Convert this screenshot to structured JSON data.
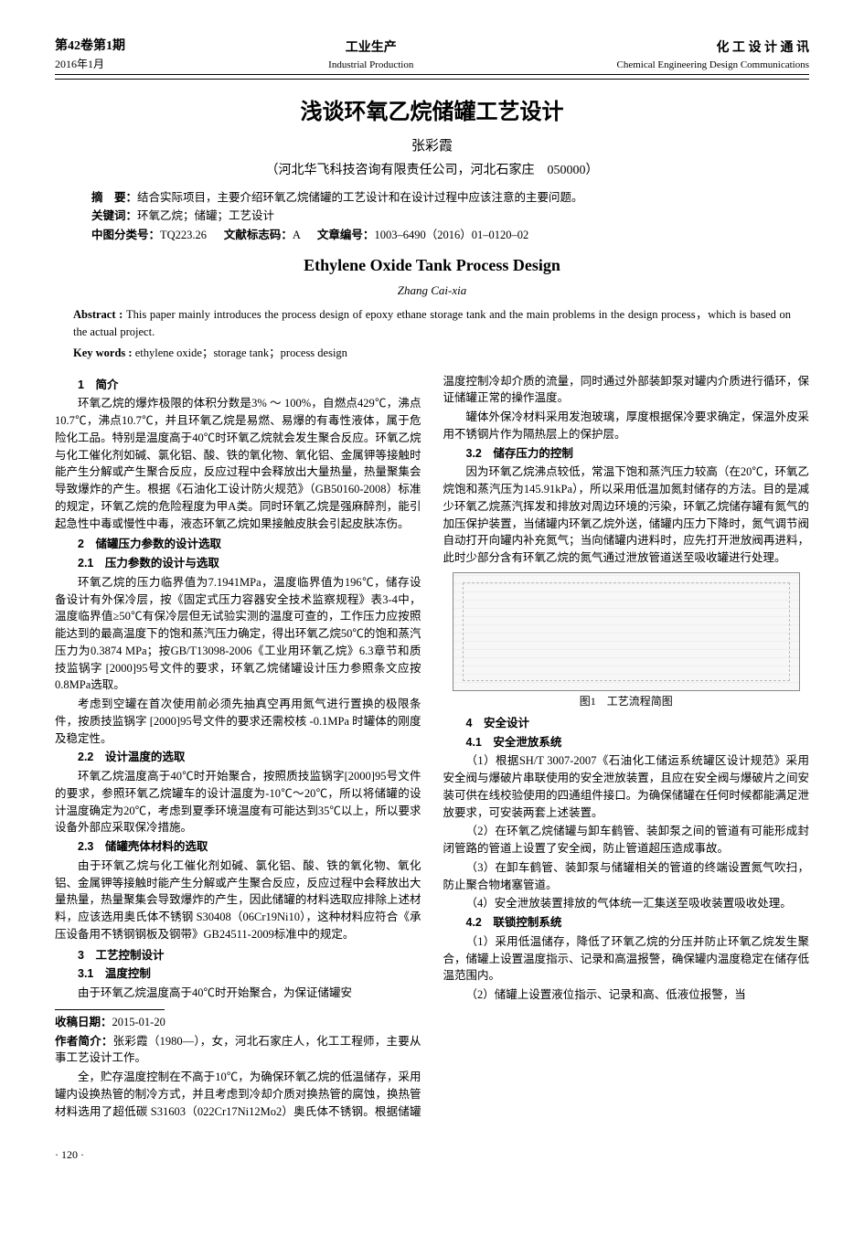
{
  "header": {
    "left_top": "第42卷第1期",
    "left_bottom": "2016年1月",
    "center_zh": "工业生产",
    "center_en": "Industrial Production",
    "right_zh": "化 工 设 计 通 讯",
    "right_en": "Chemical Engineering Design Communications"
  },
  "title_zh": "浅谈环氧乙烷储罐工艺设计",
  "author_zh": "张彩霞",
  "affil_zh": "（河北华飞科技咨询有限责任公司，河北石家庄　050000）",
  "abstract_zh_label": "摘　要：",
  "abstract_zh": "结合实际项目，主要介绍环氧乙烷储罐的工艺设计和在设计过程中应该注意的主要问题。",
  "keywords_zh_label": "关键词：",
  "keywords_zh": "环氧乙烷；储罐；工艺设计",
  "class_label": "中图分类号：",
  "class_no": "TQ223.26",
  "doc_label": "文献标志码：",
  "doc_code": "A",
  "art_label": "文章编号：",
  "art_no": "1003–6490（2016）01–0120–02",
  "title_en": "Ethylene Oxide Tank Process Design",
  "author_en": "Zhang Cai-xia",
  "abstract_en_label": "Abstract : ",
  "abstract_en": "This paper mainly introduces the process design of epoxy ethane storage tank and the main problems in the design process，which is based on the actual project.",
  "keywords_en_label": "Key words : ",
  "keywords_en": "ethylene oxide；storage tank；process design",
  "sections": {
    "s1": "1　简介",
    "s1p1": "环氧乙烷的爆炸极限的体积分数是3% ～ 100%，自燃点429℃，沸点10.7℃，沸点10.7℃，并且环氧乙烷是易燃、易爆的有毒性液体，属于危险化工品。特别是温度高于40℃时环氧乙烷就会发生聚合反应。环氧乙烷与化工催化剂如碱、氯化铝、酸、铁的氧化物、氧化铝、金属钾等接触时能产生分解或产生聚合反应，反应过程中会释放出大量热量，热量聚集会导致爆炸的产生。根据《石油化工设计防火规范》（GB50160-2008）标准的规定，环氧乙烷的危险程度为甲A类。同时环氧乙烷是强麻醉剂，能引起急性中毒或慢性中毒，液态环氧乙烷如果接触皮肤会引起皮肤冻伤。",
    "s2": "2　储罐压力参数的设计选取",
    "s21": "2.1　压力参数的设计与选取",
    "s21p1": "环氧乙烷的压力临界值为7.1941MPa，温度临界值为196℃，储存设备设计有外保冷层，按《固定式压力容器安全技术监察规程》表3-4中，温度临界值≥50℃有保冷层但无试验实测的温度可查的，工作压力应按照能达到的最高温度下的饱和蒸汽压力确定，得出环氧乙烷50℃的饱和蒸汽压力为0.3874 MPa；按GB/T13098-2006《工业用环氧乙烷》6.3章节和质技监锅字 [2000]95号文件的要求，环氧乙烷储罐设计压力参照条文应按0.8MPa选取。",
    "s21p2": "考虑到空罐在首次使用前必须先抽真空再用氮气进行置换的极限条件，按质技监锅字 [2000]95号文件的要求还需校核 -0.1MPa 时罐体的刚度及稳定性。",
    "s22": "2.2　设计温度的选取",
    "s22p1": "环氧乙烷温度高于40℃时开始聚合，按照质技监锅字[2000]95号文件的要求，参照环氧乙烷罐车的设计温度为-10℃～20℃，所以将储罐的设计温度确定为20℃，考虑到夏季环境温度有可能达到35℃以上，所以要求设备外部应采取保冷措施。",
    "s23": "2.3　储罐壳体材料的选取",
    "s23p1": "由于环氧乙烷与化工催化剂如碱、氯化铝、酸、铁的氧化物、氧化铝、金属钾等接触时能产生分解或产生聚合反应，反应过程中会释放出大量热量，热量聚集会导致爆炸的产生，因此储罐的材料选取应排除上述材料，应该选用奥氏体不锈钢 S30408（06Cr19Ni10），这种材料应符合《承压设备用不锈钢钢板及钢带》GB24511-2009标准中的规定。",
    "s3": "3　工艺控制设计",
    "s31": "3.1　温度控制",
    "s31p1": "由于环氧乙烷温度高于40℃时开始聚合，为保证储罐安",
    "s31p2": "全，贮存温度控制在不高于10℃，为确保环氧乙烷的低温储存，采用罐内设换热管的制冷方式，并且考虑到冷却介质对换热管的腐蚀，换热管材料选用了超低碳 S31603（022Cr17Ni12Mo2）奥氏体不锈钢。根据储罐温度控制冷却介质的流量，同时通过外部装卸泵对罐内介质进行循环，保证储罐正常的操作温度。",
    "s31p3": "罐体外保冷材料采用发泡玻璃，厚度根据保冷要求确定，保温外皮采用不锈钢片作为隔热层上的保护层。",
    "s32": "3.2　储存压力的控制",
    "s32p1": "因为环氧乙烷沸点较低，常温下饱和蒸汽压力较高（在20℃，环氧乙烷饱和蒸汽压为145.91kPa），所以采用低温加氮封储存的方法。目的是减少环氧乙烷蒸汽挥发和排放对周边环境的污染，环氧乙烷储存罐有氮气的加压保护装置，当储罐内环氧乙烷外送，储罐内压力下降时，氮气调节阀自动打开向罐内补充氮气；当向储罐内进料时，应先打开泄放阀再进料，此时少部分含有环氧乙烷的氮气通过泄放管道送至吸收罐进行处理。",
    "fig_caption": "图1　工艺流程简图",
    "s4": "4　安全设计",
    "s41": "4.1　安全泄放系统",
    "s41p1": "（1）根据SH/T 3007-2007《石油化工储运系统罐区设计规范》采用安全阀与爆破片串联使用的安全泄放装置，且应在安全阀与爆破片之间安装可供在线校验使用的四通组件接口。为确保储罐在任何时候都能满足泄放要求，可安装两套上述装置。",
    "s41p2": "（2）在环氧乙烷储罐与卸车鹤管、装卸泵之间的管道有可能形成封闭管路的管道上设置了安全阀，防止管道超压造成事故。",
    "s41p3": "（3）在卸车鹤管、装卸泵与储罐相关的管道的终端设置氮气吹扫，防止聚合物堵塞管道。",
    "s41p4": "（4）安全泄放装置排放的气体统一汇集送至吸收装置吸收处理。",
    "s42": "4.2　联锁控制系统",
    "s42p1": "（1）采用低温储存，降低了环氧乙烷的分压并防止环氧乙烷发生聚合，储罐上设置温度指示、记录和高温报警，确保罐内温度稳定在储存低温范围内。",
    "s42p2": "（2）储罐上设置液位指示、记录和高、低液位报警，当"
  },
  "footnote": {
    "recv_label": "收稿日期：",
    "recv": "2015-01-20",
    "bio_label": "作者简介：",
    "bio": "张彩霞（1980—），女，河北石家庄人，化工工程师，主要从事工艺设计工作。"
  },
  "page_num": "· 120 ·"
}
